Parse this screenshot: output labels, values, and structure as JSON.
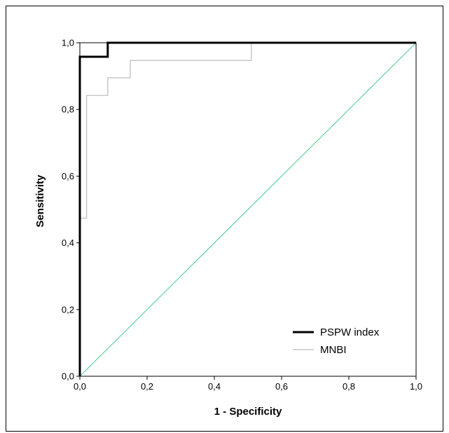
{
  "chart_data": {
    "type": "line",
    "title": "",
    "xlabel": "1 - Specificity",
    "ylabel": "Sensitivity",
    "xlim": [
      0,
      1
    ],
    "ylim": [
      0,
      1
    ],
    "x_ticks": [
      "0,0",
      "0,2",
      "0,4",
      "0,6",
      "0,8",
      "1,0"
    ],
    "y_ticks": [
      "0,0",
      "0,2",
      "0,4",
      "0,6",
      "0,8",
      "1,0"
    ],
    "grid": false,
    "legend_position": "bottom-right",
    "series": [
      {
        "name": "PSPW index",
        "color": "#000000",
        "style": "step",
        "x": [
          0,
          0,
          0.083,
          0.083,
          1.0
        ],
        "y": [
          0,
          0.958,
          0.958,
          1.0,
          1.0
        ]
      },
      {
        "name": "MNBI",
        "color": "#c8c8c8",
        "style": "step",
        "x": [
          0,
          0,
          0.02,
          0.02,
          0.083,
          0.083,
          0.15,
          0.15,
          0.51,
          0.51,
          1.0
        ],
        "y": [
          0,
          0.474,
          0.474,
          0.842,
          0.842,
          0.895,
          0.895,
          0.947,
          0.947,
          1.0,
          1.0
        ]
      },
      {
        "name": "",
        "color": "#5fd39a",
        "style": "line",
        "x": [
          0,
          1
        ],
        "y": [
          0,
          1
        ]
      }
    ]
  }
}
